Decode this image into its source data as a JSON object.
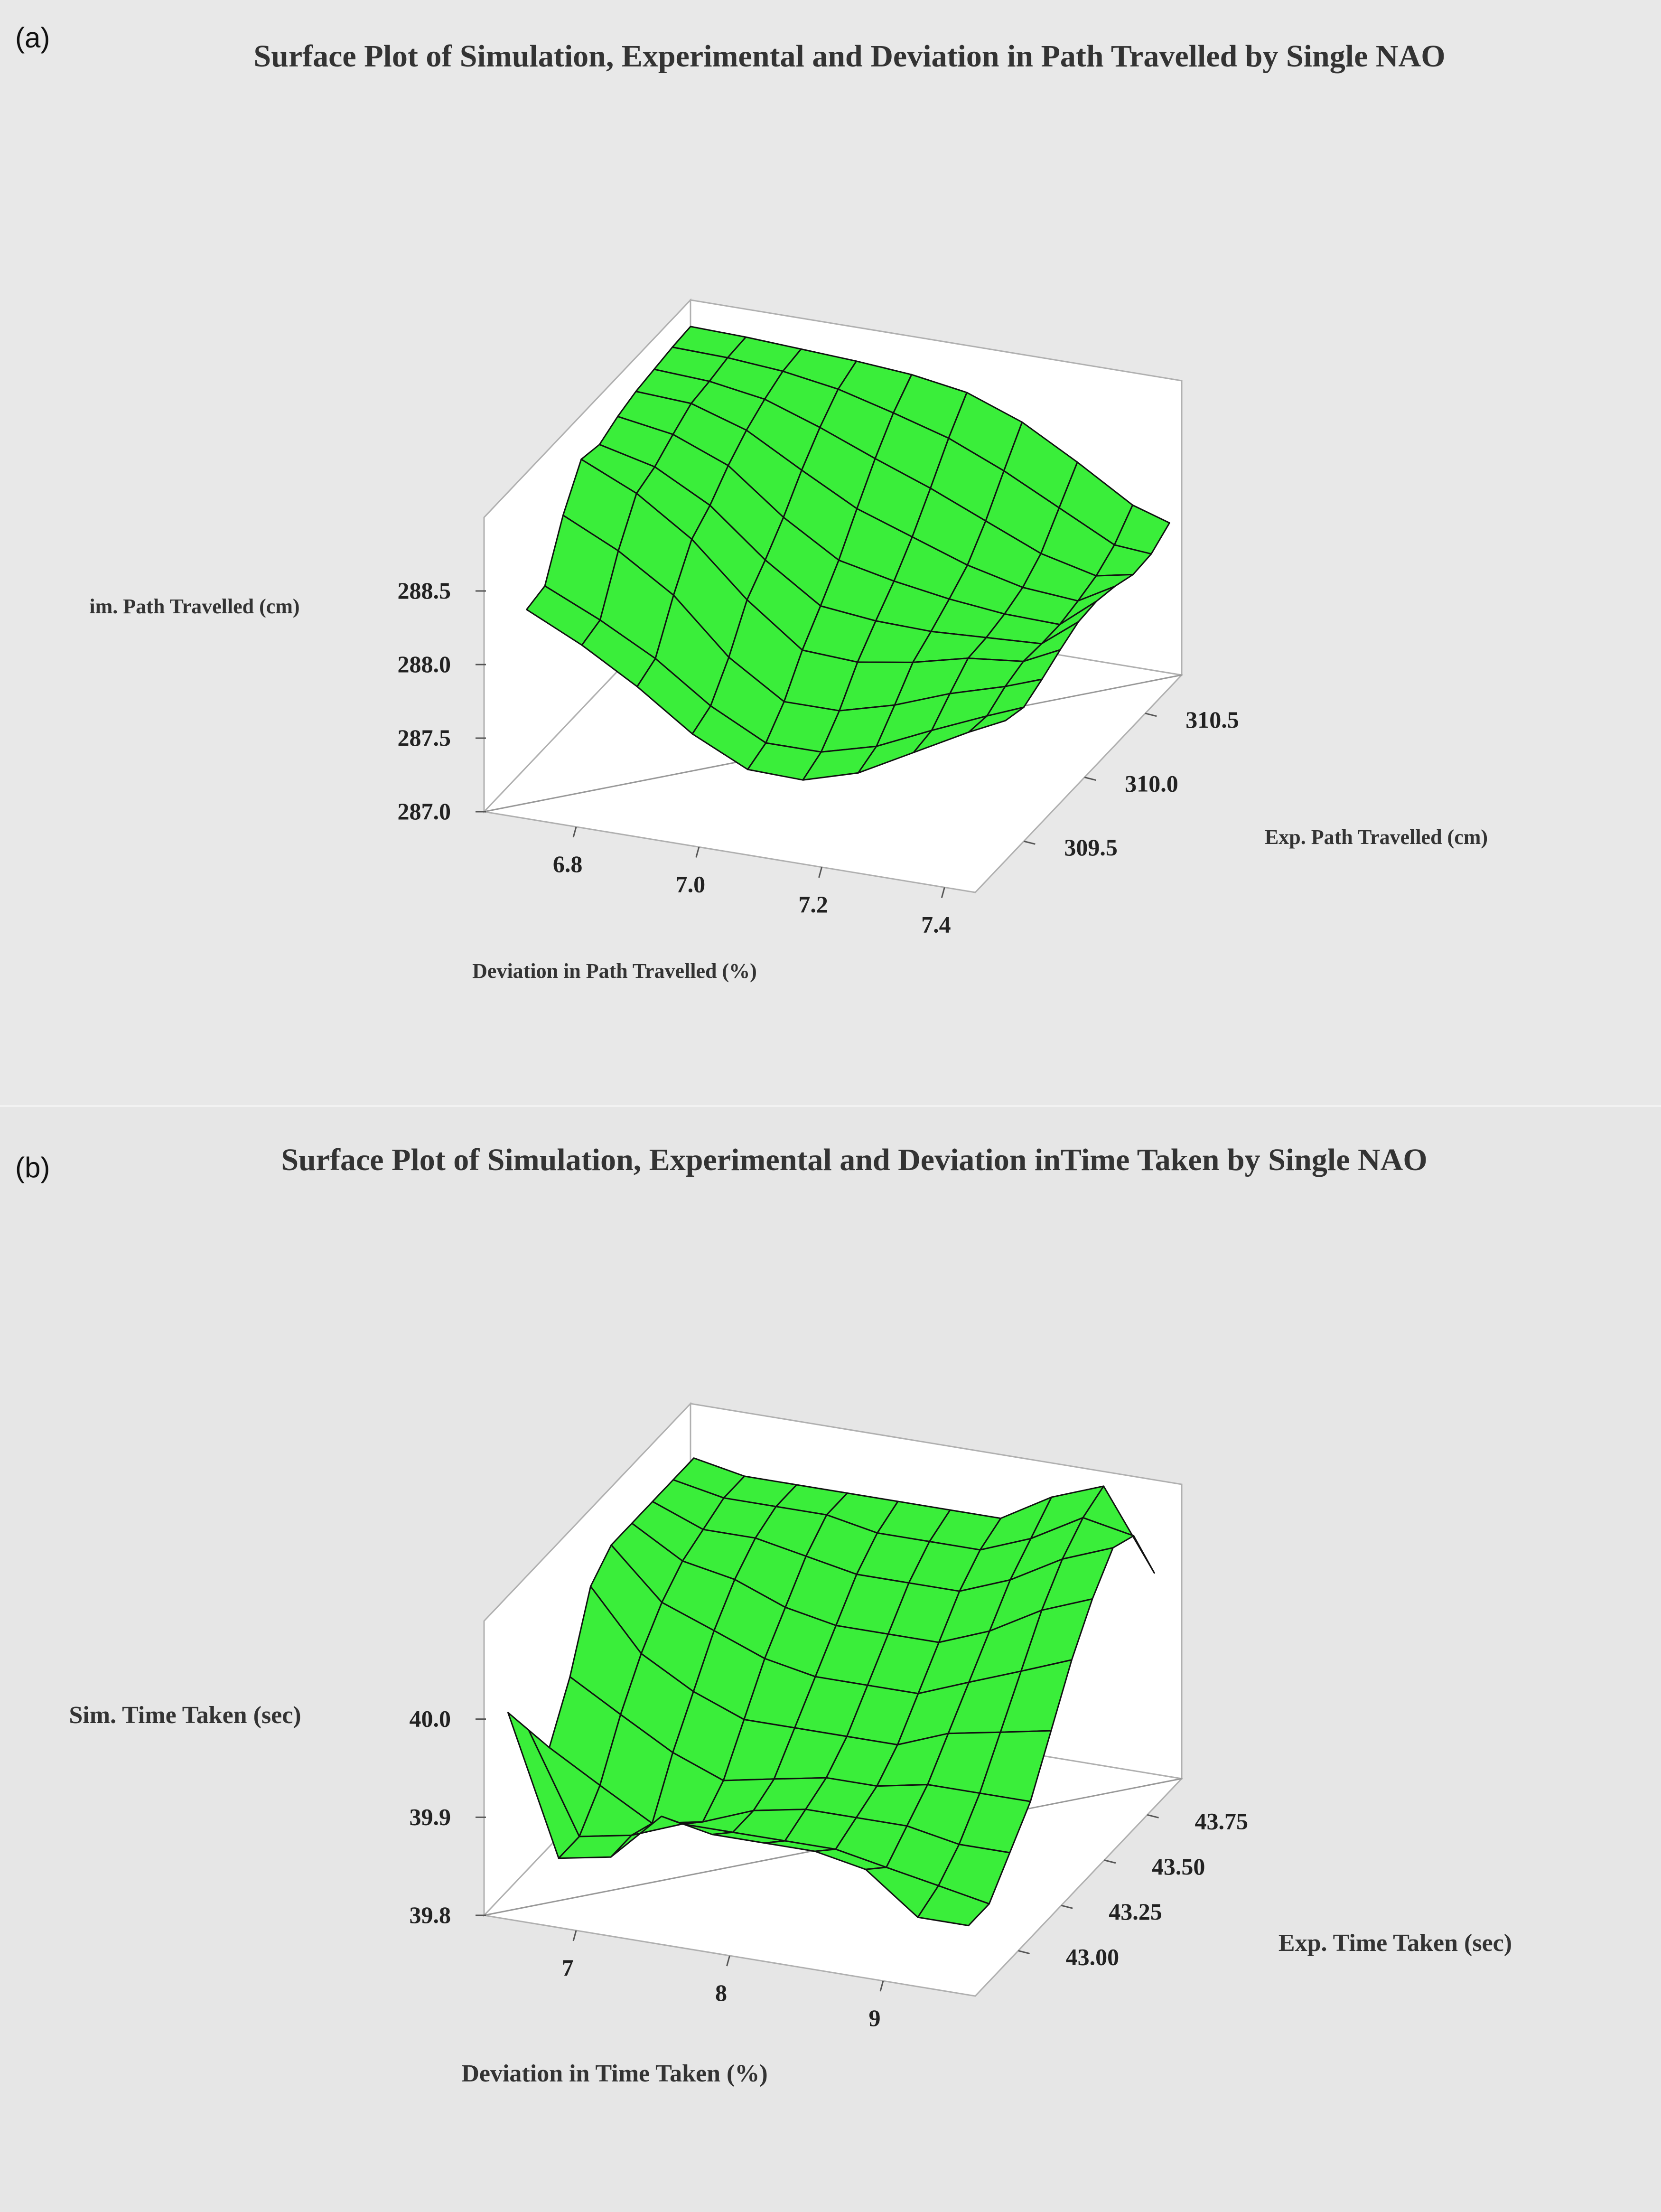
{
  "panels": [
    {
      "label": "(a)",
      "title": "Surface Plot of Simulation, Experimental and Deviation in Path Travelled by Single NAO",
      "xlabel": "Deviation in Path Travelled (%)",
      "ylabel": "Exp. Path Travelled (cm)",
      "zlabel": "im. Path Travelled (cm)"
    },
    {
      "label": "(b)",
      "title": "Surface Plot of Simulation, Experimental and Deviation inTime Taken by Single NAO",
      "xlabel": "Deviation in Time Taken (%)",
      "ylabel": "Exp. Time Taken (sec)",
      "zlabel": "Sim. Time Taken (sec)"
    }
  ],
  "colors": {
    "background": "#e8e8e8",
    "surface": "#3aee3a",
    "mesh": "#111111",
    "box": "#ffffff"
  },
  "chart_data": [
    {
      "type": "surface",
      "title": "Surface Plot of Simulation, Experimental and Deviation in Path Travelled by Single NAO",
      "xlabel": "Deviation in Path Travelled (%)",
      "ylabel": "Exp. Path Travelled (cm)",
      "zlabel": "im. Path Travelled (cm)",
      "x_ticks": [
        "6.8",
        "7.0",
        "7.2",
        "7.4"
      ],
      "y_ticks": [
        "309.5",
        "310.0",
        "310.5"
      ],
      "z_ticks": [
        "287.0",
        "287.5",
        "288.0",
        "288.5"
      ],
      "xlim": [
        6.65,
        7.45
      ],
      "ylim": [
        309.1,
        310.8
      ],
      "zlim": [
        287.0,
        289.0
      ],
      "x": [
        6.66,
        6.75,
        6.84,
        6.93,
        7.02,
        7.11,
        7.2,
        7.29,
        7.38,
        7.44
      ],
      "y": [
        309.4,
        309.55,
        309.7,
        309.85,
        310.0,
        310.15,
        310.3,
        310.45,
        310.6,
        310.75
      ],
      "z": [
        [
          288.12,
          288.15,
          288.5,
          288.75,
          288.72,
          288.78,
          288.82,
          288.84,
          288.86,
          288.87
        ],
        [
          287.94,
          287.98,
          288.32,
          288.58,
          288.63,
          288.72,
          288.8,
          288.82,
          288.85,
          288.86
        ],
        [
          287.72,
          287.78,
          288.08,
          288.33,
          288.43,
          288.57,
          288.68,
          288.76,
          288.82,
          288.84
        ],
        [
          287.46,
          287.52,
          287.72,
          287.98,
          288.12,
          288.28,
          288.47,
          288.63,
          288.76,
          288.82
        ],
        [
          287.28,
          287.33,
          287.48,
          287.7,
          287.87,
          288.05,
          288.27,
          288.48,
          288.66,
          288.79
        ],
        [
          287.27,
          287.33,
          287.48,
          287.68,
          287.83,
          287.97,
          288.14,
          288.34,
          288.55,
          288.73
        ],
        [
          287.38,
          287.43,
          287.58,
          287.74,
          287.82,
          287.91,
          288.01,
          288.18,
          288.39,
          288.59
        ],
        [
          287.58,
          287.6,
          287.72,
          287.83,
          287.84,
          287.87,
          287.92,
          288.02,
          288.2,
          288.38
        ],
        [
          287.78,
          287.76,
          287.83,
          287.87,
          287.86,
          287.86,
          287.89,
          287.93,
          288.01,
          288.15
        ],
        [
          287.9,
          287.86,
          287.92,
          287.99,
          288.05,
          288.06,
          288.03,
          287.98,
          287.99,
          288.07
        ]
      ]
    },
    {
      "type": "surface",
      "title": "Surface Plot of Simulation, Experimental and Deviation inTime Taken by Single NAO",
      "xlabel": "Deviation in Time Taken (%)",
      "ylabel": "Exp. Time Taken (sec)",
      "zlabel": "Sim. Time Taken (sec)",
      "x_ticks": [
        "7",
        "8",
        "9"
      ],
      "y_ticks": [
        "43.00",
        "43.25",
        "43.50",
        "43.75"
      ],
      "z_ticks": [
        "39.8",
        "39.9",
        "40.0"
      ],
      "xlim": [
        6.4,
        9.6
      ],
      "ylim": [
        42.75,
        43.95
      ],
      "zlim": [
        39.8,
        40.1
      ],
      "x": [
        6.5,
        6.83,
        7.17,
        7.5,
        7.83,
        8.17,
        8.5,
        8.83,
        9.17,
        9.5
      ],
      "y": [
        42.8,
        42.92,
        43.04,
        43.16,
        43.28,
        43.4,
        43.52,
        43.64,
        43.76,
        43.88
      ],
      "z": [
        [
          40.0,
          39.96,
          39.92,
          39.97,
          40.04,
          40.06,
          40.06,
          40.06,
          40.06,
          40.06
        ],
        [
          39.86,
          39.86,
          39.89,
          39.94,
          39.98,
          40.01,
          40.03,
          40.04,
          40.05,
          40.05
        ],
        [
          39.87,
          39.87,
          39.86,
          39.91,
          39.95,
          39.99,
          40.02,
          40.04,
          40.05,
          40.05
        ],
        [
          39.92,
          39.89,
          39.87,
          39.89,
          39.93,
          39.97,
          40.0,
          40.03,
          40.05,
          40.05
        ],
        [
          39.91,
          39.89,
          39.89,
          39.9,
          39.93,
          39.96,
          39.99,
          40.02,
          40.04,
          40.05
        ],
        [
          39.91,
          39.89,
          39.9,
          39.91,
          39.93,
          39.96,
          39.99,
          40.02,
          40.04,
          40.05
        ],
        [
          39.91,
          39.89,
          39.9,
          39.91,
          39.93,
          39.96,
          39.99,
          40.02,
          40.04,
          40.05
        ],
        [
          39.9,
          39.88,
          39.9,
          39.92,
          39.95,
          39.98,
          40.01,
          40.04,
          40.06,
          40.08
        ],
        [
          39.86,
          39.87,
          39.89,
          39.92,
          39.96,
          40.0,
          40.04,
          40.07,
          40.09,
          40.1
        ],
        [
          39.86,
          39.86,
          39.89,
          39.92,
          39.97,
          40.02,
          40.06,
          40.09,
          40.08,
          40.02
        ]
      ]
    }
  ]
}
